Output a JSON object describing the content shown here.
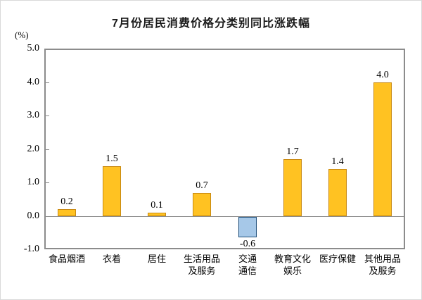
{
  "title": "7月份居民消费价格分类别同比涨跌幅",
  "chart_data": {
    "type": "bar",
    "title": "7月份居民消费价格分类别同比涨跌幅",
    "ylabel": "(%)",
    "xlabel": "",
    "ylim": [
      -1.0,
      5.0
    ],
    "y_tick_step": 1.0,
    "y_ticks": [
      "5.0",
      "4.0",
      "3.0",
      "2.0",
      "1.0",
      "0.0",
      "-1.0"
    ],
    "grid": false,
    "legend_position": "none",
    "categories": [
      "食品烟酒",
      "衣着",
      "居住",
      "生活用品及服务",
      "交通通信",
      "教育文化娱乐",
      "医疗保健",
      "其他用品及服务"
    ],
    "category_lines": [
      [
        "食品烟酒"
      ],
      [
        "衣着"
      ],
      [
        "居住"
      ],
      [
        "生活用品",
        "及服务"
      ],
      [
        "交通",
        "通信"
      ],
      [
        "教育文化",
        "娱乐"
      ],
      [
        "医疗保健"
      ],
      [
        "其他用品",
        "及服务"
      ]
    ],
    "values": [
      0.2,
      1.5,
      0.1,
      0.7,
      -0.6,
      1.7,
      1.4,
      4.0
    ],
    "value_labels": [
      "0.2",
      "1.5",
      "0.1",
      "0.7",
      "-0.6",
      "1.7",
      "1.4",
      "4.0"
    ],
    "colors": {
      "positive_fill": "#FFC222",
      "positive_border": "#C98A12",
      "negative_fill": "#A6C8E8",
      "negative_border": "#1F4E79",
      "axis": "#8C8C8C",
      "text": "#000000",
      "title_text": "#1A1A1A"
    }
  }
}
